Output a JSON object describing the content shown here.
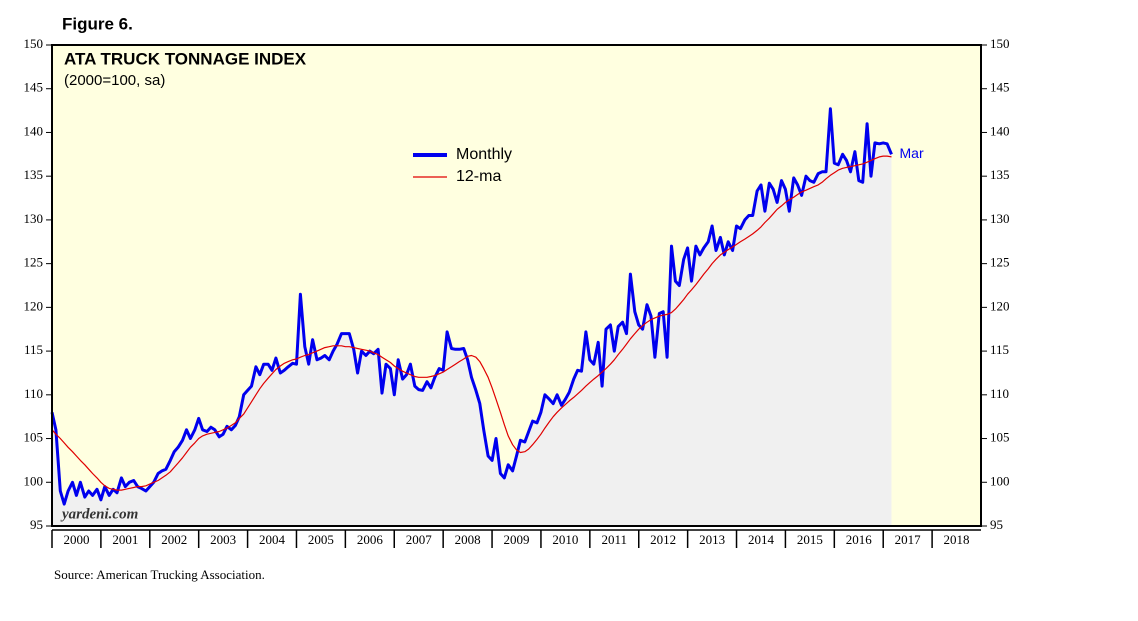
{
  "chart_data": {
    "type": "line",
    "figure_label": "Figure 6.",
    "title": "ATA TRUCK TONNAGE INDEX",
    "subtitle": "(2000=100, sa)",
    "annotation": "Mar",
    "watermark": "yardeni.com",
    "source": "Source: American Trucking Association.",
    "x": [
      2000,
      2000.08,
      2000.17,
      2000.25,
      2000.33,
      2000.42,
      2000.5,
      2000.58,
      2000.67,
      2000.75,
      2000.83,
      2000.92,
      2001,
      2001.08,
      2001.17,
      2001.25,
      2001.33,
      2001.42,
      2001.5,
      2001.58,
      2001.67,
      2001.75,
      2001.83,
      2001.92,
      2002,
      2002.08,
      2002.17,
      2002.25,
      2002.33,
      2002.42,
      2002.5,
      2002.58,
      2002.67,
      2002.75,
      2002.83,
      2002.92,
      2003,
      2003.08,
      2003.17,
      2003.25,
      2003.33,
      2003.42,
      2003.5,
      2003.58,
      2003.67,
      2003.75,
      2003.83,
      2003.92,
      2004,
      2004.08,
      2004.17,
      2004.25,
      2004.33,
      2004.42,
      2004.5,
      2004.58,
      2004.67,
      2004.75,
      2004.83,
      2004.92,
      2005,
      2005.08,
      2005.17,
      2005.25,
      2005.33,
      2005.42,
      2005.5,
      2005.58,
      2005.67,
      2005.75,
      2005.83,
      2005.92,
      2006,
      2006.08,
      2006.17,
      2006.25,
      2006.33,
      2006.42,
      2006.5,
      2006.58,
      2006.67,
      2006.75,
      2006.83,
      2006.92,
      2007,
      2007.08,
      2007.17,
      2007.25,
      2007.33,
      2007.42,
      2007.5,
      2007.58,
      2007.67,
      2007.75,
      2007.83,
      2007.92,
      2008,
      2008.08,
      2008.17,
      2008.25,
      2008.33,
      2008.42,
      2008.5,
      2008.58,
      2008.67,
      2008.75,
      2008.83,
      2008.92,
      2009,
      2009.08,
      2009.17,
      2009.25,
      2009.33,
      2009.42,
      2009.5,
      2009.58,
      2009.67,
      2009.75,
      2009.83,
      2009.92,
      2010,
      2010.08,
      2010.17,
      2010.25,
      2010.33,
      2010.42,
      2010.5,
      2010.58,
      2010.67,
      2010.75,
      2010.83,
      2010.92,
      2011,
      2011.08,
      2011.17,
      2011.25,
      2011.33,
      2011.42,
      2011.5,
      2011.58,
      2011.67,
      2011.75,
      2011.83,
      2011.92,
      2012,
      2012.08,
      2012.17,
      2012.25,
      2012.33,
      2012.42,
      2012.5,
      2012.58,
      2012.67,
      2012.75,
      2012.83,
      2012.92,
      2013,
      2013.08,
      2013.17,
      2013.25,
      2013.33,
      2013.42,
      2013.5,
      2013.58,
      2013.67,
      2013.75,
      2013.83,
      2013.92,
      2014,
      2014.08,
      2014.17,
      2014.25,
      2014.33,
      2014.42,
      2014.5,
      2014.58,
      2014.67,
      2014.75,
      2014.83,
      2014.92,
      2015,
      2015.08,
      2015.17,
      2015.25,
      2015.33,
      2015.42,
      2015.5,
      2015.58,
      2015.67,
      2015.75,
      2015.83,
      2015.92,
      2016,
      2016.08,
      2016.17,
      2016.25,
      2016.33,
      2016.42,
      2016.5,
      2016.58,
      2016.67,
      2016.75,
      2016.83,
      2016.92,
      2017,
      2017.08,
      2017.17
    ],
    "series": [
      {
        "name": "Monthly",
        "color": "#0000ee",
        "values": [
          108,
          106,
          99,
          97.5,
          99,
          100,
          98.5,
          100,
          98.3,
          99,
          98.5,
          99.2,
          98,
          99.5,
          98.5,
          99.2,
          98.8,
          100.5,
          99.5,
          100,
          100.2,
          99.5,
          99.3,
          99,
          99.5,
          100,
          101,
          101.3,
          101.5,
          102.5,
          103.5,
          104,
          104.8,
          106,
          105,
          106,
          107.3,
          106,
          105.8,
          106.3,
          106,
          105.2,
          105.5,
          106.4,
          106,
          106.5,
          107.5,
          110,
          110.5,
          111,
          113.2,
          112.3,
          113.5,
          113.5,
          112.8,
          114.2,
          112.5,
          112.8,
          113.2,
          113.6,
          113.5,
          121.5,
          115.5,
          113.5,
          116.3,
          114,
          114.2,
          114.5,
          114,
          115,
          115.8,
          117,
          117,
          117,
          115.2,
          112.5,
          115,
          114.5,
          115,
          114.7,
          115.2,
          110.2,
          113.5,
          113,
          110,
          114,
          111.8,
          112.3,
          113.5,
          111,
          110.6,
          110.5,
          111.5,
          110.8,
          112,
          113,
          112.8,
          117.2,
          115.3,
          115.2,
          115.2,
          115.3,
          114,
          112,
          110.5,
          109,
          106,
          103,
          102.5,
          105,
          101,
          100.5,
          102,
          101.3,
          103,
          104.8,
          104.6,
          105.8,
          107,
          106.8,
          108,
          110,
          109.5,
          109,
          110,
          108.8,
          109.5,
          110.3,
          111.8,
          112.8,
          112.7,
          117.2,
          114,
          113.5,
          116,
          111,
          117.5,
          118,
          115,
          117.8,
          118.3,
          117,
          123.8,
          119.5,
          118,
          117.5,
          120.3,
          119,
          114.3,
          119.3,
          119.5,
          114.3,
          127,
          123,
          122.5,
          125.5,
          126.8,
          123,
          127,
          126,
          126.8,
          127.5,
          129.3,
          126.5,
          128,
          126,
          127.5,
          126.5,
          129.3,
          129,
          130,
          130.5,
          130.5,
          133.3,
          134,
          131,
          134.2,
          133.5,
          132,
          134.5,
          133.5,
          131,
          134.8,
          134,
          132.8,
          135,
          134.5,
          134.3,
          135.3,
          135.5,
          135.5,
          142.7,
          136.5,
          136.3,
          137.5,
          136.8,
          135.5,
          137.8,
          134.5,
          134.3,
          141,
          135,
          138.8,
          138.7,
          138.8,
          138.7,
          137.5
        ]
      },
      {
        "name": "12-ma",
        "color": "#e00000",
        "values": [
          106,
          105.5,
          105,
          104.5,
          104,
          103.5,
          103,
          102.5,
          102,
          101.5,
          101,
          100.5,
          100,
          99.6,
          99.3,
          99.2,
          99.1,
          99.1,
          99.2,
          99.3,
          99.4,
          99.5,
          99.5,
          99.6,
          99.8,
          100,
          100.2,
          100.5,
          100.8,
          101.2,
          101.7,
          102.2,
          102.8,
          103.4,
          104,
          104.5,
          105,
          105.3,
          105.5,
          105.6,
          105.7,
          105.8,
          106,
          106.2,
          106.5,
          106.8,
          107.3,
          107.8,
          108.5,
          109.2,
          110,
          110.7,
          111.3,
          111.9,
          112.4,
          112.9,
          113.3,
          113.6,
          113.8,
          114,
          114.1,
          114.3,
          114.5,
          114.6,
          114.8,
          115,
          115.2,
          115.4,
          115.5,
          115.6,
          115.6,
          115.6,
          115.5,
          115.5,
          115.4,
          115.3,
          115.2,
          115.1,
          115,
          114.8,
          114.6,
          114.3,
          114,
          113.7,
          113.3,
          113,
          112.7,
          112.5,
          112.3,
          112.1,
          112,
          112,
          112,
          112.1,
          112.2,
          112.4,
          112.6,
          112.9,
          113.2,
          113.5,
          113.8,
          114.1,
          114.4,
          114.5,
          114.3,
          113.8,
          113,
          112,
          110.8,
          109.5,
          108,
          106.6,
          105.3,
          104.3,
          103.7,
          103.4,
          103.5,
          103.8,
          104.3,
          104.9,
          105.5,
          106.2,
          106.9,
          107.5,
          108,
          108.5,
          108.9,
          109.3,
          109.7,
          110.1,
          110.5,
          111,
          111.4,
          111.8,
          112.2,
          112.6,
          113,
          113.5,
          114,
          114.6,
          115.2,
          115.8,
          116.4,
          117,
          117.5,
          117.9,
          118.3,
          118.6,
          118.8,
          119,
          119.1,
          119.2,
          119.4,
          119.8,
          120.3,
          120.9,
          121.5,
          122,
          122.6,
          123.2,
          123.8,
          124.4,
          125,
          125.5,
          126,
          126.3,
          126.6,
          126.9,
          127.2,
          127.5,
          127.8,
          128.1,
          128.4,
          128.8,
          129.2,
          129.7,
          130.2,
          130.7,
          131.2,
          131.6,
          132,
          132.3,
          132.6,
          132.9,
          133.2,
          133.4,
          133.6,
          133.8,
          134,
          134.3,
          134.7,
          135.1,
          135.4,
          135.7,
          135.9,
          136,
          136.1,
          136.2,
          136.3,
          136.4,
          136.6,
          136.8,
          137,
          137.2,
          137.3,
          137.3,
          137.2
        ]
      }
    ],
    "xlim": [
      2000,
      2019
    ],
    "xticks": [
      2000,
      2001,
      2002,
      2003,
      2004,
      2005,
      2006,
      2007,
      2008,
      2009,
      2010,
      2011,
      2012,
      2013,
      2014,
      2015,
      2016,
      2017,
      2018
    ],
    "ylim": [
      95,
      150
    ],
    "yticks": [
      95,
      100,
      105,
      110,
      115,
      120,
      125,
      130,
      135,
      140,
      145,
      150
    ],
    "y2lim": [
      95,
      150
    ],
    "y2ticks": [
      95,
      100,
      105,
      110,
      115,
      120,
      125,
      130,
      135,
      140,
      145,
      150
    ],
    "grid": false,
    "legend": "top"
  }
}
